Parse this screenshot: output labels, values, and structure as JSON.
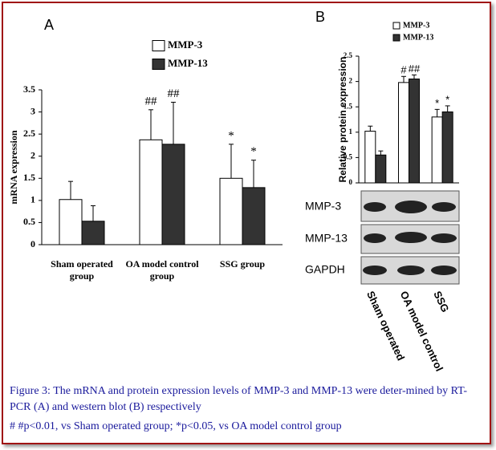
{
  "chart_data": [
    {
      "type": "bar",
      "title": "A",
      "ylabel": "mRNA expression",
      "categories": [
        "Sham operated group",
        "OA model control group",
        "SSG group"
      ],
      "series": [
        {
          "name": "MMP-3",
          "color": "#ffffff",
          "values": [
            1.02,
            2.37,
            1.5
          ],
          "errors": [
            0.41,
            0.68,
            0.77
          ],
          "annotations": [
            null,
            "##",
            "*"
          ]
        },
        {
          "name": "MMP-13",
          "color": "#333333",
          "values": [
            0.53,
            2.27,
            1.29
          ],
          "errors": [
            0.35,
            0.95,
            0.62
          ],
          "annotations": [
            null,
            "##",
            "*"
          ]
        }
      ],
      "ylim": [
        0,
        3.5
      ],
      "yticks": [
        0,
        0.5,
        1,
        1.5,
        2,
        2.5,
        3,
        3.5
      ],
      "grid": false
    },
    {
      "type": "bar",
      "title": "B",
      "ylabel": "Relative protein expression",
      "categories": [
        "Sham operated",
        "OA model control",
        "SSG"
      ],
      "series": [
        {
          "name": "MMP-3",
          "color": "#ffffff",
          "values": [
            1.02,
            1.98,
            1.3
          ],
          "errors": [
            0.1,
            0.12,
            0.15
          ],
          "annotations": [
            null,
            "#",
            "*"
          ]
        },
        {
          "name": "MMP-13",
          "color": "#333333",
          "values": [
            0.55,
            2.05,
            1.4
          ],
          "errors": [
            0.08,
            0.08,
            0.12
          ],
          "annotations": [
            null,
            "##",
            "*"
          ]
        }
      ],
      "ylim": [
        0,
        2.5
      ],
      "yticks": [
        0,
        0.5,
        1,
        1.5,
        2,
        2.5
      ],
      "grid": false,
      "blot_rows": [
        "MMP-3",
        "MMP-13",
        "GAPDH"
      ]
    }
  ],
  "caption": [
    "Figure 3: The mRNA and protein expression levels of MMP-3 and MMP-13 were deter-mined by RT-PCR (A) and western blot (B) respectively",
    "# #p<0.01, vs Sham operated group; *p<0.05, vs OA model control group"
  ]
}
